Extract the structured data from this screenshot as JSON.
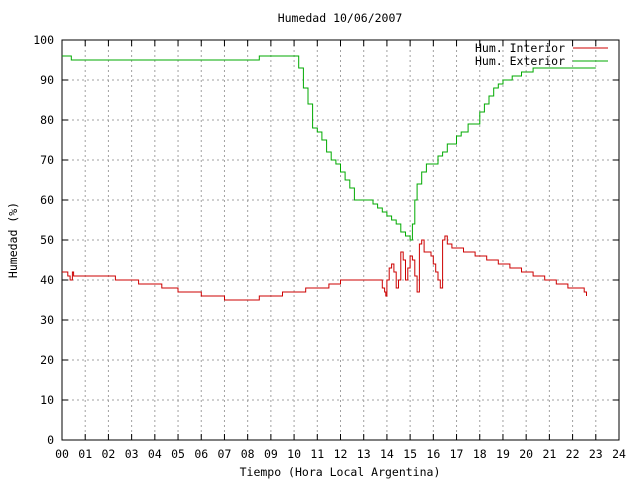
{
  "chart_data": {
    "type": "line",
    "title": "Humedad 10/06/2007",
    "xlabel": "Tiempo (Hora Local Argentina)",
    "ylabel": "Humedad (%)",
    "xlim": [
      0,
      24
    ],
    "ylim": [
      0,
      100
    ],
    "x_tick_labels": [
      "00",
      "01",
      "02",
      "03",
      "04",
      "05",
      "06",
      "07",
      "08",
      "09",
      "10",
      "11",
      "12",
      "13",
      "14",
      "15",
      "16",
      "17",
      "18",
      "19",
      "20",
      "21",
      "22",
      "23",
      "24"
    ],
    "y_ticks": [
      0,
      10,
      20,
      30,
      40,
      50,
      60,
      70,
      80,
      90,
      100
    ],
    "grid": true,
    "legend_position": "top-right",
    "series": [
      {
        "name": "Hum. Interior",
        "color": "#cc0000",
        "x": [
          0,
          0.2,
          0.25,
          0.35,
          0.45,
          0.5,
          0.6,
          1.0,
          1.5,
          2.0,
          2.3,
          3.0,
          3.3,
          4.0,
          4.3,
          4.7,
          5.0,
          5.5,
          6.0,
          6.5,
          7.0,
          7.5,
          8.0,
          8.5,
          9.0,
          9.5,
          10.0,
          10.5,
          11.0,
          11.5,
          12.0,
          12.5,
          13.0,
          13.5,
          13.8,
          13.9,
          13.95,
          14.0,
          14.1,
          14.2,
          14.3,
          14.4,
          14.5,
          14.6,
          14.7,
          14.8,
          14.9,
          15.0,
          15.1,
          15.2,
          15.3,
          15.4,
          15.5,
          15.6,
          15.7,
          15.8,
          15.9,
          16.0,
          16.1,
          16.2,
          16.3,
          16.4,
          16.5,
          16.6,
          16.7,
          16.8,
          17.0,
          17.3,
          17.5,
          17.8,
          18.0,
          18.3,
          18.5,
          18.8,
          19.0,
          19.3,
          19.5,
          19.8,
          20.0,
          20.3,
          20.5,
          20.8,
          21.0,
          21.3,
          21.5,
          21.8,
          22.0,
          22.3,
          22.5,
          22.6
        ],
        "y": [
          42,
          42,
          41,
          40,
          42,
          41,
          41,
          41,
          41,
          41,
          40,
          40,
          39,
          39,
          38,
          38,
          37,
          37,
          36,
          36,
          35,
          35,
          35,
          36,
          36,
          37,
          37,
          38,
          38,
          39,
          40,
          40,
          40,
          40,
          38,
          37,
          36,
          40,
          43,
          44,
          42,
          38,
          40,
          47,
          45,
          40,
          43,
          46,
          45,
          41,
          37,
          49,
          50,
          47,
          47,
          47,
          46,
          44,
          42,
          40,
          38,
          50,
          51,
          49,
          49,
          48,
          48,
          47,
          47,
          46,
          46,
          45,
          45,
          44,
          44,
          43,
          43,
          42,
          42,
          41,
          41,
          40,
          40,
          39,
          39,
          38,
          38,
          38,
          37,
          36
        ]
      },
      {
        "name": "Hum. Exterior",
        "color": "#00aa00",
        "x": [
          0,
          0.3,
          0.4,
          0.5,
          1.0,
          2.0,
          3.0,
          4.0,
          5.0,
          6.0,
          7.0,
          8.0,
          8.5,
          9.0,
          9.5,
          10.0,
          10.2,
          10.4,
          10.6,
          10.8,
          11.0,
          11.2,
          11.4,
          11.6,
          11.8,
          12.0,
          12.2,
          12.4,
          12.6,
          12.8,
          13.0,
          13.2,
          13.4,
          13.6,
          13.8,
          14.0,
          14.2,
          14.4,
          14.6,
          14.8,
          15.0,
          15.1,
          15.2,
          15.3,
          15.5,
          15.7,
          16.0,
          16.2,
          16.4,
          16.6,
          16.8,
          17.0,
          17.2,
          17.5,
          17.8,
          18.0,
          18.2,
          18.4,
          18.6,
          18.8,
          19.0,
          19.2,
          19.4,
          19.6,
          19.8,
          20.0,
          20.3,
          20.6,
          21.0,
          21.5,
          22.0,
          22.5,
          23.0
        ],
        "y": [
          96,
          96,
          95,
          95,
          95,
          95,
          95,
          95,
          95,
          95,
          95,
          95,
          96,
          96,
          96,
          96,
          93,
          88,
          84,
          78,
          77,
          75,
          72,
          70,
          69,
          67,
          65,
          63,
          60,
          60,
          60,
          60,
          59,
          58,
          57,
          56,
          55,
          54,
          52,
          51,
          50,
          54,
          60,
          64,
          67,
          69,
          69,
          71,
          72,
          74,
          74,
          76,
          77,
          79,
          79,
          82,
          84,
          86,
          88,
          89,
          90,
          90,
          91,
          91,
          92,
          92,
          93,
          93,
          93,
          93,
          93,
          93,
          93
        ]
      }
    ]
  }
}
